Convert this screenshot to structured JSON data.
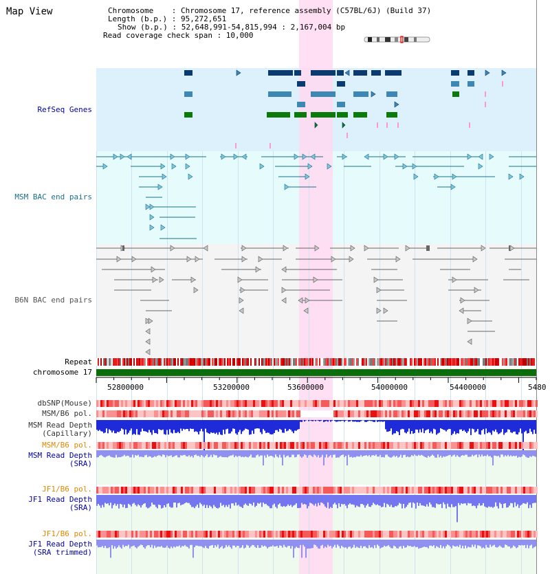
{
  "header": {
    "title": "Map View",
    "chromosome_label": "Chromosome    : Chromosome 17, reference assembly (C57BL/6J) (Build 37)",
    "length_label": "Length (b.p.) : 95,272,651",
    "show_label": "Show (b.p.) : 52,648,991-54,815,994 : 2,167,004 bp",
    "coverage_label": "Read coverage check span : 10,000"
  },
  "tracks": {
    "refseq": "RefSeq Genes",
    "msm_bac": "MSM BAC end pairs",
    "b6n_bac": "B6N BAC end pairs",
    "repeat": "Repeat",
    "chromosome": "chromosome 17",
    "dbsnp": "dbSNP(Mouse)",
    "msm_b6_pol_1": "MSM/B6 pol.",
    "msm_depth_cap_1": "MSM Read Depth",
    "msm_depth_cap_2": "(Capillary)",
    "msm_b6_pol_2": "MSM/B6 pol.",
    "msm_depth_sra_1": "MSM Read Depth",
    "msm_depth_sra_2": "(SRA)",
    "jf1_b6_pol_1": "JF1/B6 pol.",
    "jf1_depth_sra_1": "JF1 Read Depth",
    "jf1_depth_sra_2": "(SRA)",
    "jf1_b6_pol_2": "JF1/B6 pol.",
    "jf1_depth_trim_1": "JF1 Read Depth",
    "jf1_depth_trim_2": "(SRA trimmed)"
  },
  "axis": {
    "ticks": [
      "52800000",
      "53200000",
      "53600000",
      "54000000",
      "54400000",
      "5480"
    ]
  },
  "colors": {
    "refseq_dark": "#0a3a6e",
    "refseq_mid": "#3d87b3",
    "refseq_green": "#0b7a0b",
    "msm_bac": "#1a6f8a",
    "b6n_bac": "#666666",
    "highlight": "#ffd9f1",
    "chromosome_bar": "#0b6e0b"
  }
}
